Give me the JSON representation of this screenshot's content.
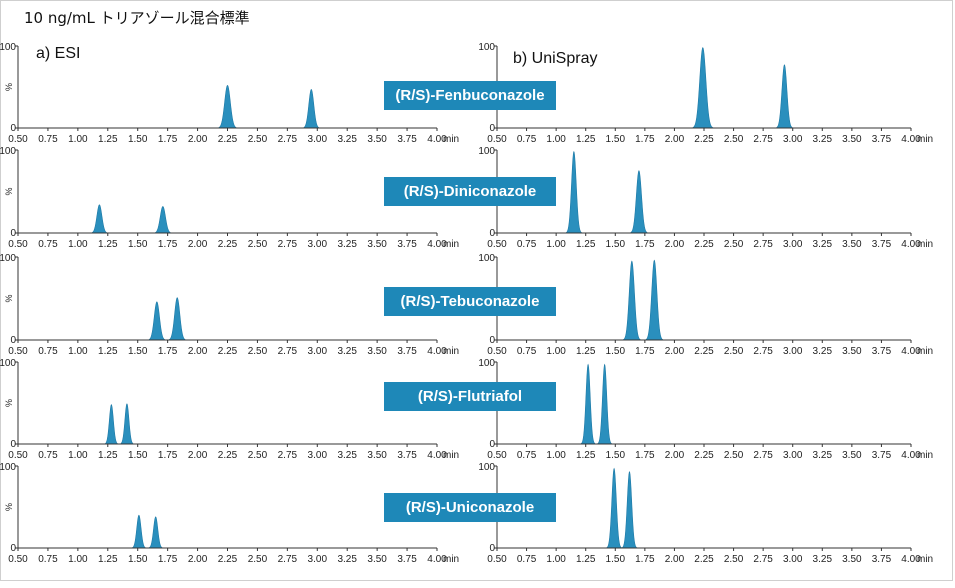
{
  "title": "10 ng/mL トリアゾール混合標準",
  "panels": {
    "left_label": "a) ESI",
    "right_label": "b) UniSpray"
  },
  "colors": {
    "peak_fill": "#2a8fbd",
    "peak_stroke": "#1f7aa6",
    "axis": "#333333",
    "label_bg": "#1e88b8",
    "label_text": "#ffffff"
  },
  "compounds": [
    "(R/S)-Fenbuconazole",
    "(R/S)-Diniconazole",
    "(R/S)-Tebuconazole",
    "(R/S)-Flutriafol",
    "(R/S)-Uniconazole"
  ],
  "chart_data": [
    {
      "type": "area",
      "panel": "a) ESI",
      "compound": "(R/S)-Fenbuconazole",
      "xlim": [
        0.5,
        4.0
      ],
      "ylim": [
        0,
        100
      ],
      "ylabel": "%",
      "xunit": "min",
      "x_ticks": [
        "0.50",
        "0.75",
        "1.00",
        "1.25",
        "1.50",
        "1.75",
        "2.00",
        "2.25",
        "2.50",
        "2.75",
        "3.00",
        "3.25",
        "3.50",
        "3.75",
        "4.00"
      ],
      "y_ticks": [
        "0",
        "100"
      ],
      "peaks": [
        {
          "rt": 2.25,
          "height": 52,
          "width": 0.024
        },
        {
          "rt": 2.95,
          "height": 47,
          "width": 0.021
        }
      ]
    },
    {
      "type": "area",
      "panel": "a) ESI",
      "compound": "(R/S)-Diniconazole",
      "xlim": [
        0.5,
        4.0
      ],
      "ylim": [
        0,
        100
      ],
      "ylabel": "%",
      "xunit": "min",
      "x_ticks": [
        "0.50",
        "0.75",
        "1.00",
        "1.25",
        "1.50",
        "1.75",
        "2.00",
        "2.25",
        "2.50",
        "2.75",
        "3.00",
        "3.25",
        "3.50",
        "3.75",
        "4.00"
      ],
      "y_ticks": [
        "0",
        "100"
      ],
      "peaks": [
        {
          "rt": 1.18,
          "height": 34,
          "width": 0.021
        },
        {
          "rt": 1.71,
          "height": 32,
          "width": 0.022
        }
      ]
    },
    {
      "type": "area",
      "panel": "a) ESI",
      "compound": "(R/S)-Tebuconazole",
      "xlim": [
        0.5,
        4.0
      ],
      "ylim": [
        0,
        100
      ],
      "ylabel": "%",
      "xunit": "min",
      "x_ticks": [
        "0.50",
        "0.75",
        "1.00",
        "1.25",
        "1.50",
        "1.75",
        "2.00",
        "2.25",
        "2.50",
        "2.75",
        "3.00",
        "3.25",
        "3.50",
        "3.75",
        "4.00"
      ],
      "y_ticks": [
        "0",
        "100"
      ],
      "peaks": [
        {
          "rt": 1.66,
          "height": 46,
          "width": 0.022
        },
        {
          "rt": 1.83,
          "height": 51,
          "width": 0.022
        }
      ]
    },
    {
      "type": "area",
      "panel": "a) ESI",
      "compound": "(R/S)-Flutriafol",
      "xlim": [
        0.5,
        4.0
      ],
      "ylim": [
        0,
        100
      ],
      "ylabel": "%",
      "xunit": "min",
      "x_ticks": [
        "0.50",
        "0.75",
        "1.00",
        "1.25",
        "1.50",
        "1.75",
        "2.00",
        "2.25",
        "2.50",
        "2.75",
        "3.00",
        "3.25",
        "3.50",
        "3.75",
        "4.00"
      ],
      "y_ticks": [
        "0",
        "100"
      ],
      "peaks": [
        {
          "rt": 1.28,
          "height": 48,
          "width": 0.017
        },
        {
          "rt": 1.41,
          "height": 49,
          "width": 0.017
        }
      ]
    },
    {
      "type": "area",
      "panel": "a) ESI",
      "compound": "(R/S)-Uniconazole",
      "xlim": [
        0.5,
        4.0
      ],
      "ylim": [
        0,
        100
      ],
      "ylabel": "%",
      "xunit": "min",
      "x_ticks": [
        "0.50",
        "0.75",
        "1.00",
        "1.25",
        "1.50",
        "1.75",
        "2.00",
        "2.25",
        "2.50",
        "2.75",
        "3.00",
        "3.25",
        "3.50",
        "3.75",
        "4.00"
      ],
      "y_ticks": [
        "0",
        "100"
      ],
      "peaks": [
        {
          "rt": 1.51,
          "height": 40,
          "width": 0.018
        },
        {
          "rt": 1.65,
          "height": 38,
          "width": 0.018
        }
      ]
    },
    {
      "type": "area",
      "panel": "b) UniSpray",
      "compound": "(R/S)-Fenbuconazole",
      "xlim": [
        0.5,
        4.0
      ],
      "ylim": [
        0,
        100
      ],
      "ylabel": "%",
      "xunit": "min",
      "x_ticks": [
        "0.50",
        "0.75",
        "1.00",
        "1.25",
        "1.50",
        "1.75",
        "2.00",
        "2.25",
        "2.50",
        "2.75",
        "3.00",
        "3.25",
        "3.50",
        "3.75",
        "4.00"
      ],
      "y_ticks": [
        "0",
        "100"
      ],
      "peaks": [
        {
          "rt": 2.24,
          "height": 98,
          "width": 0.026
        },
        {
          "rt": 2.93,
          "height": 77,
          "width": 0.021
        }
      ]
    },
    {
      "type": "area",
      "panel": "b) UniSpray",
      "compound": "(R/S)-Diniconazole",
      "xlim": [
        0.5,
        4.0
      ],
      "ylim": [
        0,
        100
      ],
      "ylabel": "%",
      "xunit": "min",
      "x_ticks": [
        "0.50",
        "0.75",
        "1.00",
        "1.25",
        "1.50",
        "1.75",
        "2.00",
        "2.25",
        "2.50",
        "2.75",
        "3.00",
        "3.25",
        "3.50",
        "3.75",
        "4.00"
      ],
      "y_ticks": [
        "0",
        "100"
      ],
      "peaks": [
        {
          "rt": 1.15,
          "height": 98,
          "width": 0.02
        },
        {
          "rt": 1.7,
          "height": 75,
          "width": 0.022
        }
      ]
    },
    {
      "type": "area",
      "panel": "b) UniSpray",
      "compound": "(R/S)-Tebuconazole",
      "xlim": [
        0.5,
        4.0
      ],
      "ylim": [
        0,
        100
      ],
      "ylabel": "%",
      "xunit": "min",
      "x_ticks": [
        "0.50",
        "0.75",
        "1.00",
        "1.25",
        "1.50",
        "1.75",
        "2.00",
        "2.25",
        "2.50",
        "2.75",
        "3.00",
        "3.25",
        "3.50",
        "3.75",
        "4.00"
      ],
      "y_ticks": [
        "0",
        "100"
      ],
      "peaks": [
        {
          "rt": 1.64,
          "height": 95,
          "width": 0.022
        },
        {
          "rt": 1.83,
          "height": 96,
          "width": 0.022
        }
      ]
    },
    {
      "type": "area",
      "panel": "b) UniSpray",
      "compound": "(R/S)-Flutriafol",
      "xlim": [
        0.5,
        4.0
      ],
      "ylim": [
        0,
        100
      ],
      "ylabel": "%",
      "xunit": "min",
      "x_ticks": [
        "0.50",
        "0.75",
        "1.00",
        "1.25",
        "1.50",
        "1.75",
        "2.00",
        "2.25",
        "2.50",
        "2.75",
        "3.00",
        "3.25",
        "3.50",
        "3.75",
        "4.00"
      ],
      "y_ticks": [
        "0",
        "100"
      ],
      "peaks": [
        {
          "rt": 1.27,
          "height": 97,
          "width": 0.018
        },
        {
          "rt": 1.41,
          "height": 97,
          "width": 0.018
        }
      ]
    },
    {
      "type": "area",
      "panel": "b) UniSpray",
      "compound": "(R/S)-Uniconazole",
      "xlim": [
        0.5,
        4.0
      ],
      "ylim": [
        0,
        100
      ],
      "ylabel": "%",
      "xunit": "min",
      "x_ticks": [
        "0.50",
        "0.75",
        "1.00",
        "1.25",
        "1.50",
        "1.75",
        "2.00",
        "2.25",
        "2.50",
        "2.75",
        "3.00",
        "3.25",
        "3.50",
        "3.75",
        "4.00"
      ],
      "y_ticks": [
        "0",
        "100"
      ],
      "peaks": [
        {
          "rt": 1.49,
          "height": 97,
          "width": 0.019
        },
        {
          "rt": 1.62,
          "height": 93,
          "width": 0.019
        }
      ]
    }
  ]
}
